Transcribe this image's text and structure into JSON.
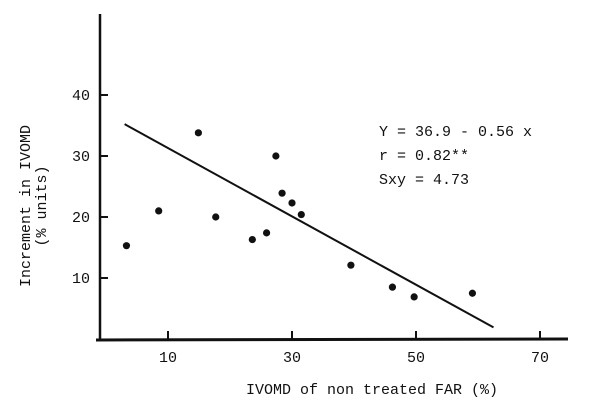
{
  "chart_data": {
    "type": "scatter",
    "title": "",
    "xlabel": "IVOMD of non treated FAR (%)",
    "ylabel": "Increment in IVOMD",
    "ylabel_unit": "(% units)",
    "xlim": [
      0,
      72
    ],
    "ylim": [
      0,
      45
    ],
    "xticks": [
      10,
      30,
      50,
      70
    ],
    "yticks": [
      10,
      20,
      30,
      40
    ],
    "grid": false,
    "points": [
      {
        "x": 3.3,
        "y": 15.3
      },
      {
        "x": 8.5,
        "y": 21.0
      },
      {
        "x": 14.9,
        "y": 33.8
      },
      {
        "x": 17.7,
        "y": 20.0
      },
      {
        "x": 23.6,
        "y": 16.3
      },
      {
        "x": 25.9,
        "y": 17.4
      },
      {
        "x": 27.4,
        "y": 30.0
      },
      {
        "x": 28.4,
        "y": 23.9
      },
      {
        "x": 30.0,
        "y": 22.3
      },
      {
        "x": 31.5,
        "y": 20.4
      },
      {
        "x": 39.5,
        "y": 12.1
      },
      {
        "x": 46.2,
        "y": 8.5
      },
      {
        "x": 49.7,
        "y": 6.9
      },
      {
        "x": 59.1,
        "y": 7.5
      }
    ],
    "regression": {
      "intercept": 36.9,
      "slope": -0.56,
      "x_range": [
        3,
        62.5
      ]
    },
    "annotations": [
      "Y = 36.9 - 0.56 x",
      "r = 0.82**",
      "Sxy = 4.73"
    ],
    "colors": {
      "ink": "#111111",
      "background": "#ffffff"
    }
  }
}
